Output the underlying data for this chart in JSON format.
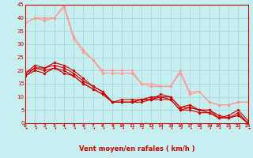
{
  "xlabel": "Vent moyen/en rafales ( km/h )",
  "xlim": [
    0,
    23
  ],
  "ylim": [
    0,
    45
  ],
  "xticks": [
    0,
    1,
    2,
    3,
    4,
    5,
    6,
    7,
    8,
    9,
    10,
    11,
    12,
    13,
    14,
    15,
    16,
    17,
    18,
    19,
    20,
    21,
    22,
    23
  ],
  "yticks": [
    0,
    5,
    10,
    15,
    20,
    25,
    30,
    35,
    40,
    45
  ],
  "bg_color": "#c8efef",
  "grid_color": "#a0d8d8",
  "line_color_dark": "#cc0000",
  "line_color_light": "#ff9999",
  "series_dark": [
    {
      "x": [
        0,
        1,
        2,
        3,
        4,
        5,
        6,
        7,
        8,
        9,
        10,
        11,
        12,
        13,
        14,
        15,
        16,
        17,
        18,
        19,
        20,
        21,
        22,
        23
      ],
      "y": [
        19,
        22,
        21,
        23,
        22,
        20,
        17,
        14,
        12,
        8,
        8,
        8,
        9,
        9,
        11,
        10,
        6,
        6,
        5,
        5,
        2,
        3,
        5,
        1
      ]
    },
    {
      "x": [
        0,
        1,
        2,
        3,
        4,
        5,
        6,
        7,
        8,
        9,
        10,
        11,
        12,
        13,
        14,
        15,
        16,
        17,
        18,
        19,
        20,
        21,
        22,
        23
      ],
      "y": [
        19,
        21,
        21,
        22,
        21,
        19,
        16,
        14,
        12,
        8,
        9,
        9,
        9,
        10,
        10,
        10,
        6,
        7,
        5,
        5,
        3,
        2,
        4,
        0
      ]
    },
    {
      "x": [
        0,
        1,
        2,
        3,
        4,
        5,
        6,
        7,
        8,
        9,
        10,
        11,
        12,
        13,
        14,
        15,
        16,
        17,
        18,
        19,
        20,
        21,
        22,
        23
      ],
      "y": [
        18,
        21,
        20,
        21,
        20,
        18,
        15,
        13,
        11,
        8,
        8,
        8,
        9,
        9,
        10,
        9,
        5,
        6,
        5,
        4,
        2,
        2,
        3,
        0
      ]
    },
    {
      "x": [
        0,
        1,
        2,
        3,
        4,
        5,
        6,
        7,
        8,
        9,
        10,
        11,
        12,
        13,
        14,
        15,
        16,
        17,
        18,
        19,
        20,
        21,
        22,
        23
      ],
      "y": [
        18,
        20,
        19,
        21,
        19,
        18,
        15,
        13,
        11,
        8,
        8,
        8,
        8,
        9,
        9,
        9,
        5,
        5,
        4,
        4,
        2,
        2,
        3,
        0
      ]
    }
  ],
  "series_light": [
    {
      "x": [
        0,
        1,
        2,
        3,
        4,
        5,
        6,
        7,
        8,
        9,
        10,
        11,
        12,
        13,
        14,
        15,
        16,
        17,
        18,
        19,
        20,
        21,
        22,
        23
      ],
      "y": [
        38,
        40,
        40,
        40,
        45,
        33,
        28,
        24,
        20,
        20,
        20,
        20,
        15,
        15,
        14,
        14,
        20,
        12,
        12,
        8,
        7,
        7,
        8,
        8
      ]
    },
    {
      "x": [
        0,
        1,
        2,
        3,
        4,
        5,
        6,
        7,
        8,
        9,
        10,
        11,
        12,
        13,
        14,
        15,
        16,
        17,
        18,
        19,
        20,
        21,
        22,
        23
      ],
      "y": [
        38,
        40,
        39,
        40,
        44,
        32,
        27,
        24,
        19,
        19,
        19,
        19,
        15,
        14,
        14,
        14,
        19,
        11,
        12,
        8,
        7,
        7,
        8,
        8
      ]
    }
  ],
  "arrow_color": "#cc0000"
}
